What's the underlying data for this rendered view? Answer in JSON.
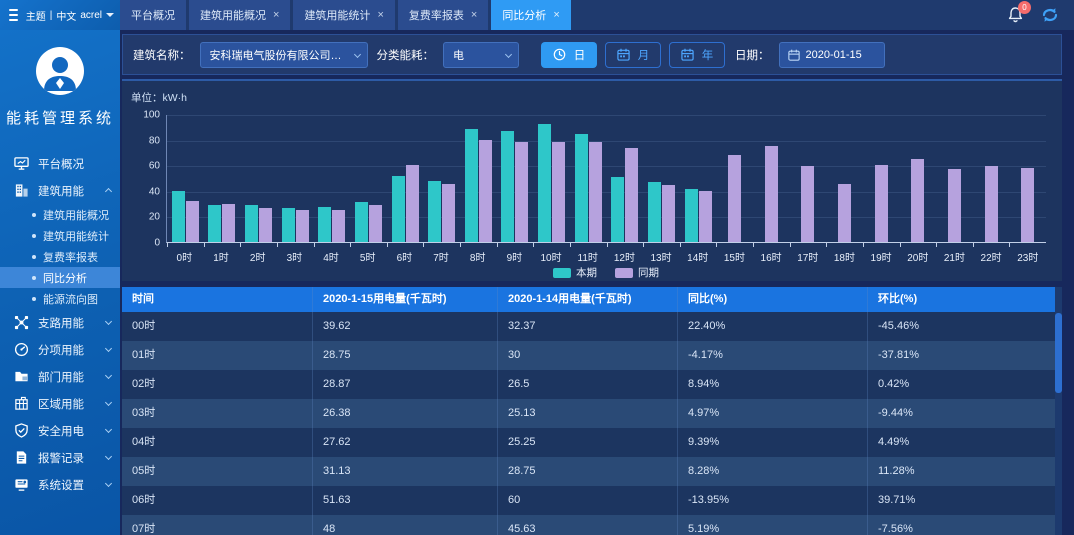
{
  "topbar": {
    "theme_label": "主题",
    "divider": "|",
    "lang_label": "中文",
    "user_label": "acrel",
    "notification_badge": "0",
    "tabs": [
      {
        "label": "平台概况",
        "closable": false,
        "active": false
      },
      {
        "label": "建筑用能概况",
        "closable": true,
        "active": false
      },
      {
        "label": "建筑用能统计",
        "closable": true,
        "active": false
      },
      {
        "label": "复费率报表",
        "closable": true,
        "active": false
      },
      {
        "label": "同比分析",
        "closable": true,
        "active": true
      }
    ]
  },
  "sidebar": {
    "title": "能耗管理系统",
    "items": [
      {
        "label": "平台概况",
        "icon": "monitor-icon",
        "expandable": false
      },
      {
        "label": "建筑用能",
        "icon": "building-icon",
        "expandable": true,
        "expanded": true,
        "children": [
          {
            "label": "建筑用能概况",
            "active": false
          },
          {
            "label": "建筑用能统计",
            "active": false
          },
          {
            "label": "复费率报表",
            "active": false
          },
          {
            "label": "同比分析",
            "active": true
          },
          {
            "label": "能源流向图",
            "active": false
          }
        ]
      },
      {
        "label": "支路用能",
        "icon": "branch-icon",
        "expandable": true
      },
      {
        "label": "分项用能",
        "icon": "gauge-icon",
        "expandable": true
      },
      {
        "label": "部门用能",
        "icon": "folder-icon",
        "expandable": true
      },
      {
        "label": "区域用能",
        "icon": "area-icon",
        "expandable": true
      },
      {
        "label": "安全用电",
        "icon": "shield-icon",
        "expandable": true
      },
      {
        "label": "报警记录",
        "icon": "report-icon",
        "expandable": true
      },
      {
        "label": "系统设置",
        "icon": "settings-icon",
        "expandable": true
      }
    ]
  },
  "filters": {
    "building_label": "建筑名称：",
    "building_value": "安科瑞电气股份有限公司A楼",
    "energy_label": "分类能耗：",
    "energy_value": "电",
    "period_buttons": [
      {
        "label": "日",
        "icon": "clock-icon",
        "active": true
      },
      {
        "label": "月",
        "icon": "calendar-icon",
        "active": false
      },
      {
        "label": "年",
        "icon": "calendar-icon",
        "active": false
      }
    ],
    "date_label": "日期：",
    "date_value": "2020-01-15"
  },
  "chart_data": {
    "type": "bar",
    "title": "单位：kW·h",
    "ylabel": "kW·h",
    "ylim": [
      0,
      100
    ],
    "yticks": [
      0,
      20,
      40,
      60,
      80,
      100
    ],
    "grid": true,
    "legend_position": "bottom-center",
    "categories": [
      "0时",
      "1时",
      "2时",
      "3时",
      "4时",
      "5时",
      "6时",
      "7时",
      "8时",
      "9时",
      "10时",
      "11时",
      "12时",
      "13时",
      "14时",
      "15时",
      "16时",
      "17时",
      "18时",
      "19时",
      "20时",
      "21时",
      "22时",
      "23时"
    ],
    "series": [
      {
        "name": "本期",
        "color": "#2ec7c9",
        "values": [
          39.62,
          28.75,
          28.87,
          26.38,
          27.62,
          31.13,
          51.63,
          48,
          88.5,
          86.4,
          92.1,
          84.3,
          50.5,
          46.8,
          41.3,
          null,
          null,
          null,
          null,
          null,
          null,
          null,
          null,
          null
        ]
      },
      {
        "name": "同期",
        "color": "#b6a2de",
        "values": [
          32.37,
          30,
          26.5,
          25.13,
          25.25,
          28.75,
          60,
          45.63,
          79.5,
          78.5,
          78,
          78,
          73.5,
          44.5,
          39.5,
          68,
          75,
          59,
          45,
          60.5,
          64.5,
          57,
          59,
          57.5
        ]
      }
    ]
  },
  "table": {
    "columns": [
      "时间",
      "2020-1-15用电量(千瓦时)",
      "2020-1-14用电量(千瓦时)",
      "同比(%)",
      "环比(%)"
    ],
    "rows": [
      [
        "00时",
        "39.62",
        "32.37",
        "22.40%",
        "-45.46%"
      ],
      [
        "01时",
        "28.75",
        "30",
        "-4.17%",
        "-37.81%"
      ],
      [
        "02时",
        "28.87",
        "26.5",
        "8.94%",
        "0.42%"
      ],
      [
        "03时",
        "26.38",
        "25.13",
        "4.97%",
        "-9.44%"
      ],
      [
        "04时",
        "27.62",
        "25.25",
        "9.39%",
        "4.49%"
      ],
      [
        "05时",
        "31.13",
        "28.75",
        "8.28%",
        "11.28%"
      ],
      [
        "06时",
        "51.63",
        "60",
        "-13.95%",
        "39.71%"
      ],
      [
        "07时",
        "48",
        "45.63",
        "5.19%",
        "-7.56%"
      ]
    ]
  },
  "colors": {
    "accent_blue": "#2f9bf4",
    "current_period": "#2ec7c9",
    "same_period": "#b6a2de",
    "table_header": "#1a74e0",
    "badge_red": "#f56c6c"
  }
}
